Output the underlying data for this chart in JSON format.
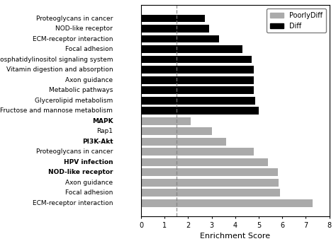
{
  "categories": [
    "Proteoglycans in cancer",
    "NOD-like receptor",
    "ECM-receptor interaction",
    "Focal adhesion",
    "Phosphatidylinositol signaling system",
    "Vitamin digestion and absorption",
    "Axon guidance",
    "Metabolic pathways",
    "Glycerolipid metabolism",
    "Fructose and mannose metabolism",
    "MAPK",
    "Rap1",
    "PI3K-Akt",
    "Proteoglycans in cancer",
    "HPV infection",
    "NOD-like receptor",
    "Axon guidance",
    "Focal adhesion",
    "ECM-receptor interaction"
  ],
  "bold_flags": [
    false,
    false,
    false,
    false,
    false,
    false,
    false,
    false,
    false,
    false,
    true,
    false,
    true,
    false,
    true,
    true,
    false,
    false,
    false
  ],
  "values": [
    2.7,
    2.9,
    3.3,
    4.3,
    4.7,
    4.8,
    4.8,
    4.8,
    4.85,
    5.0,
    2.1,
    3.0,
    3.6,
    4.8,
    5.4,
    5.8,
    5.85,
    5.9,
    7.3
  ],
  "colors": [
    "black",
    "black",
    "black",
    "black",
    "black",
    "black",
    "black",
    "black",
    "black",
    "black",
    "#aaaaaa",
    "#aaaaaa",
    "#aaaaaa",
    "#aaaaaa",
    "#aaaaaa",
    "#aaaaaa",
    "#aaaaaa",
    "#aaaaaa",
    "#aaaaaa"
  ],
  "legend_labels": [
    "PoorlyDiff",
    "Diff"
  ],
  "legend_colors": [
    "#aaaaaa",
    "black"
  ],
  "xlabel": "Enrichment Score",
  "xlim": [
    0,
    8
  ],
  "xticks": [
    0,
    1,
    2,
    3,
    4,
    5,
    6,
    7,
    8
  ],
  "dashed_line_x": 1.5,
  "label_fontsize": 6.5,
  "axis_fontsize": 8,
  "tick_fontsize": 7,
  "bar_height": 0.75
}
